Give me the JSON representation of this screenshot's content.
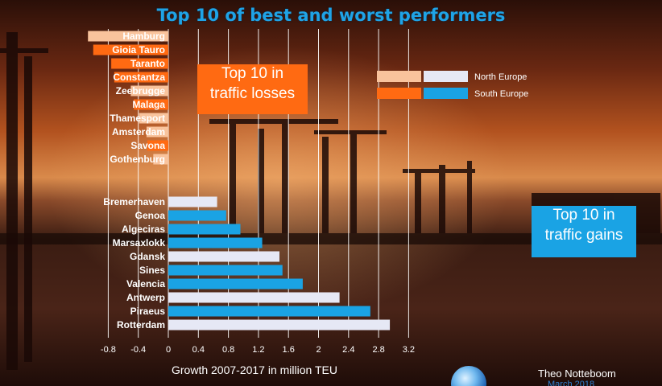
{
  "title": "Top 10 of best and worst performers",
  "callouts": {
    "losses": [
      "Top 10 in",
      "traffic losses"
    ],
    "gains": [
      "Top 10 in",
      "traffic gains"
    ]
  },
  "author": "Theo Notteboom",
  "author_date": "March 2018",
  "colors": {
    "north_europe_loss": "#f9c39c",
    "south_europe_loss": "#ff6a12",
    "north_europe_gain": "#e6e8f5",
    "south_europe_gain": "#1aa3e4",
    "title": "#1fa3e6"
  },
  "chart_data": {
    "type": "bar",
    "orientation": "horizontal",
    "xlabel": "Growth 2007-2017 in million TEU",
    "xlim": [
      -1.0,
      3.2
    ],
    "xticks": [
      -0.8,
      -0.4,
      0,
      0.4,
      0.8,
      1.2,
      1.6,
      2,
      2.4,
      2.8,
      3.2
    ],
    "grid": true,
    "legend_placement": "top-right",
    "legend": [
      {
        "name": "North Europe",
        "colors": [
          "#f9c39c",
          "#e6e8f5"
        ]
      },
      {
        "name": "South Europe",
        "colors": [
          "#ff6a12",
          "#1aa3e4"
        ]
      }
    ],
    "losses": [
      {
        "port": "Hamburg",
        "region": "North Europe",
        "value": -1.07
      },
      {
        "port": "Gioia Tauro",
        "region": "South Europe",
        "value": -1.0
      },
      {
        "port": "Taranto",
        "region": "South Europe",
        "value": -0.76
      },
      {
        "port": "Constantza",
        "region": "South Europe",
        "value": -0.72
      },
      {
        "port": "Zeebrugge",
        "region": "North Europe",
        "value": -0.5
      },
      {
        "port": "Malaga",
        "region": "South Europe",
        "value": -0.46
      },
      {
        "port": "Thamesport",
        "region": "North Europe",
        "value": -0.39
      },
      {
        "port": "Amsterdam",
        "region": "North Europe",
        "value": -0.29
      },
      {
        "port": "Savona",
        "region": "South Europe",
        "value": -0.28
      },
      {
        "port": "Gothenburg",
        "region": "North Europe",
        "value": -0.2
      }
    ],
    "gains": [
      {
        "port": "Bremerhaven",
        "region": "North Europe",
        "value": 0.65
      },
      {
        "port": "Genoa",
        "region": "South Europe",
        "value": 0.77
      },
      {
        "port": "Algeciras",
        "region": "South Europe",
        "value": 0.96
      },
      {
        "port": "Marsaxlokk",
        "region": "South Europe",
        "value": 1.25
      },
      {
        "port": "Gdansk",
        "region": "North Europe",
        "value": 1.48
      },
      {
        "port": "Sines",
        "region": "South Europe",
        "value": 1.52
      },
      {
        "port": "Valencia",
        "region": "South Europe",
        "value": 1.79
      },
      {
        "port": "Antwerp",
        "region": "North Europe",
        "value": 2.28
      },
      {
        "port": "Piraeus",
        "region": "South Europe",
        "value": 2.69
      },
      {
        "port": "Rotterdam",
        "region": "North Europe",
        "value": 2.95
      }
    ]
  }
}
